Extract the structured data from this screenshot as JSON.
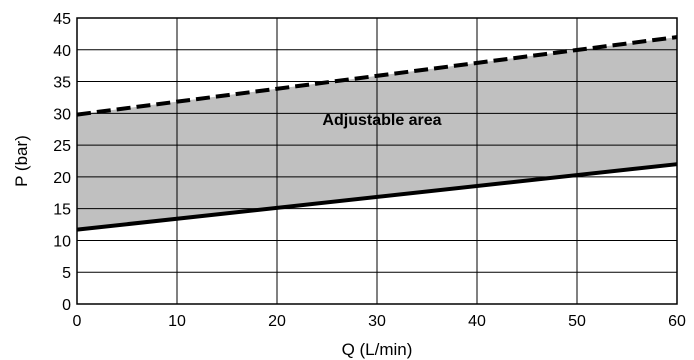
{
  "chart_data": {
    "type": "area",
    "title": "",
    "xlabel": "Q (L/min)",
    "ylabel": "P (bar)",
    "xlim": [
      0,
      60
    ],
    "ylim": [
      0,
      45
    ],
    "x_ticks": [
      0,
      10,
      20,
      30,
      40,
      50,
      60
    ],
    "y_ticks": [
      0,
      5,
      10,
      15,
      20,
      25,
      30,
      35,
      40,
      45
    ],
    "grid": true,
    "fill_color": "#c0c0c0",
    "line_color": "#000000",
    "series": [
      {
        "style": "dashed",
        "x": [
          0,
          60
        ],
        "y": [
          29.8,
          42.0
        ]
      },
      {
        "style": "solid",
        "x": [
          0,
          60
        ],
        "y": [
          11.7,
          22.0
        ]
      }
    ],
    "annotations": [
      {
        "text": "Adjustable area",
        "x": 30.5,
        "y": 28.2
      }
    ]
  }
}
